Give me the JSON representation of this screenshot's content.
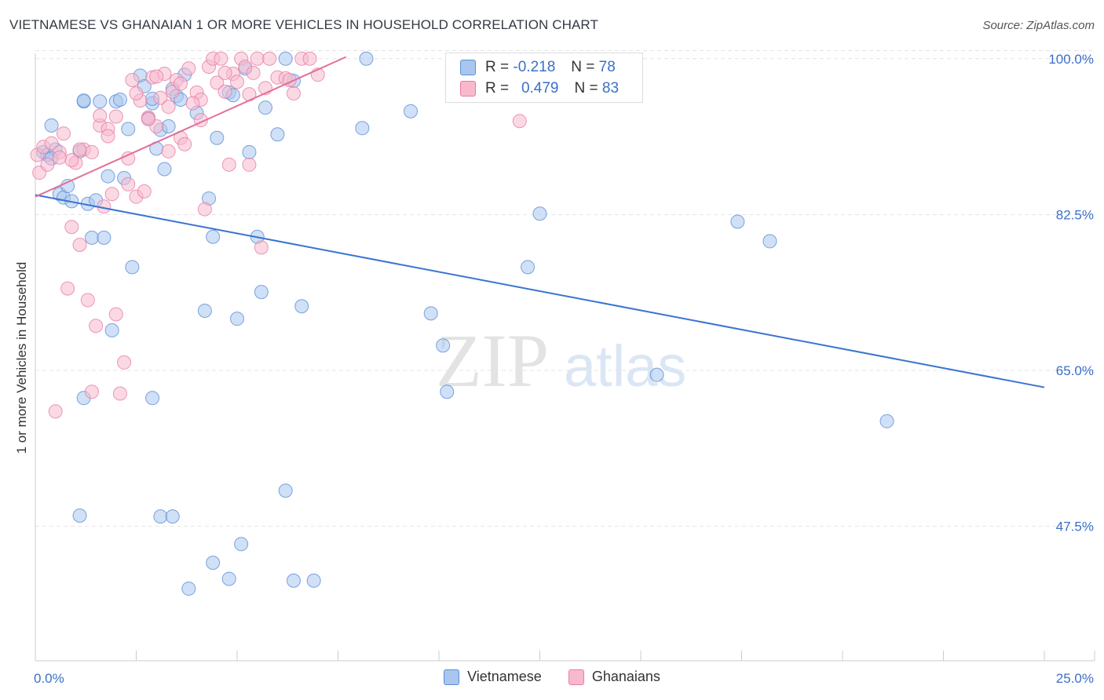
{
  "title": "VIETNAMESE VS GHANAIAN 1 OR MORE VEHICLES IN HOUSEHOLD CORRELATION CHART",
  "source": "Source: ZipAtlas.com",
  "watermark": {
    "zip": "ZIP",
    "atlas": "atlas"
  },
  "stats": [
    {
      "r_label": "R =",
      "r": "-0.218",
      "n_label": "N =",
      "n": "78",
      "color": "#a9c6ef",
      "border": "#5b8fd8"
    },
    {
      "r_label": "R =",
      "r": "0.479",
      "n_label": "N =",
      "n": "83",
      "color": "#f8b9cd",
      "border": "#e67ea3"
    }
  ],
  "legend": [
    {
      "label": "Vietnamese",
      "color": "#a9c6ef",
      "border": "#5b8fd8"
    },
    {
      "label": "Ghanaians",
      "color": "#f8b9cd",
      "border": "#e67ea3"
    }
  ],
  "chart_data": {
    "type": "scatter",
    "xlabel": "",
    "ylabel": "1 or more Vehicles in Household",
    "xlim": [
      0,
      25
    ],
    "ylim": [
      32.4,
      101.3
    ],
    "x_tick_labels": [
      {
        "v": 0,
        "label": "0.0%"
      },
      {
        "v": 25,
        "label": "25.0%"
      }
    ],
    "y_tick_labels": [
      {
        "v": 100,
        "label": "100.0%"
      },
      {
        "v": 82.5,
        "label": "82.5%"
      },
      {
        "v": 65,
        "label": "65.0%"
      },
      {
        "v": 47.5,
        "label": "47.5%"
      }
    ],
    "series": [
      {
        "name": "Vietnamese",
        "color": "#a9c6ef",
        "stroke": "#5b8fd8",
        "trend": {
          "x": [
            0,
            25
          ],
          "y": [
            84.7,
            63.1
          ],
          "color": "#3a74d0"
        },
        "points": [
          [
            0.2,
            89.5
          ],
          [
            0.3,
            89.2
          ],
          [
            0.4,
            92.5
          ],
          [
            0.5,
            89.8
          ],
          [
            0.6,
            84.8
          ],
          [
            0.7,
            84.4
          ],
          [
            0.8,
            85.7
          ],
          [
            0.9,
            84.0
          ],
          [
            1.1,
            89.6
          ],
          [
            1.2,
            95.2
          ],
          [
            1.3,
            83.7
          ],
          [
            1.4,
            79.9
          ],
          [
            1.5,
            84.1
          ],
          [
            1.6,
            95.2
          ],
          [
            1.7,
            79.9
          ],
          [
            1.8,
            86.8
          ],
          [
            1.9,
            69.5
          ],
          [
            2.0,
            95.2
          ],
          [
            2.1,
            95.4
          ],
          [
            2.2,
            86.6
          ],
          [
            2.3,
            92.1
          ],
          [
            2.4,
            76.6
          ],
          [
            2.6,
            98.1
          ],
          [
            2.7,
            96.9
          ],
          [
            2.8,
            93.3
          ],
          [
            2.9,
            95.0
          ],
          [
            3.0,
            89.9
          ],
          [
            3.1,
            92.0
          ],
          [
            3.2,
            87.6
          ],
          [
            3.3,
            92.4
          ],
          [
            3.4,
            96.6
          ],
          [
            3.5,
            95.8
          ],
          [
            3.6,
            95.4
          ],
          [
            3.7,
            98.2
          ],
          [
            4.0,
            93.9
          ],
          [
            4.2,
            71.7
          ],
          [
            4.3,
            84.3
          ],
          [
            4.4,
            80.0
          ],
          [
            4.5,
            91.1
          ],
          [
            4.8,
            96.2
          ],
          [
            4.9,
            95.9
          ],
          [
            5.0,
            70.8
          ],
          [
            5.2,
            98.9
          ],
          [
            5.3,
            89.5
          ],
          [
            5.5,
            80.0
          ],
          [
            5.6,
            73.8
          ],
          [
            5.7,
            94.5
          ],
          [
            6.0,
            91.5
          ],
          [
            6.2,
            100.0
          ],
          [
            6.4,
            97.5
          ],
          [
            6.6,
            72.2
          ],
          [
            8.1,
            92.2
          ],
          [
            8.2,
            100.0
          ],
          [
            9.3,
            94.1
          ],
          [
            9.8,
            71.4
          ],
          [
            10.1,
            67.8
          ],
          [
            10.2,
            62.6
          ],
          [
            12.2,
            76.6
          ],
          [
            12.5,
            82.6
          ],
          [
            15.4,
            64.5
          ],
          [
            17.4,
            81.7
          ],
          [
            18.2,
            79.5
          ],
          [
            21.1,
            59.3
          ],
          [
            1.2,
            61.9
          ],
          [
            2.9,
            61.9
          ],
          [
            3.1,
            48.6
          ],
          [
            3.4,
            48.6
          ],
          [
            4.4,
            43.4
          ],
          [
            4.8,
            41.6
          ],
          [
            5.1,
            45.5
          ],
          [
            6.2,
            51.5
          ],
          [
            6.4,
            41.4
          ],
          [
            6.9,
            41.4
          ],
          [
            1.1,
            48.7
          ],
          [
            3.8,
            40.5
          ],
          [
            1.2,
            95.3
          ],
          [
            0.4,
            88.8
          ],
          [
            2.9,
            95.5
          ]
        ]
      },
      {
        "name": "Ghanaians",
        "color": "#f8b9cd",
        "stroke": "#e67ea3",
        "trend": {
          "x": [
            0,
            7.7
          ],
          "y": [
            84.5,
            100.2
          ],
          "color": "#e1709a"
        },
        "points": [
          [
            0.05,
            89.2
          ],
          [
            0.1,
            87.2
          ],
          [
            0.2,
            90.1
          ],
          [
            0.3,
            88.1
          ],
          [
            0.4,
            90.5
          ],
          [
            0.5,
            60.4
          ],
          [
            0.6,
            89.5
          ],
          [
            0.7,
            91.6
          ],
          [
            0.8,
            74.2
          ],
          [
            0.9,
            81.1
          ],
          [
            1.0,
            88.3
          ],
          [
            1.1,
            79.1
          ],
          [
            1.2,
            89.8
          ],
          [
            1.3,
            72.9
          ],
          [
            1.4,
            89.5
          ],
          [
            1.5,
            70.0
          ],
          [
            1.6,
            92.5
          ],
          [
            1.7,
            83.4
          ],
          [
            1.8,
            92.1
          ],
          [
            1.9,
            84.8
          ],
          [
            2.0,
            71.3
          ],
          [
            2.1,
            62.4
          ],
          [
            2.2,
            65.9
          ],
          [
            2.3,
            88.8
          ],
          [
            2.4,
            97.6
          ],
          [
            2.5,
            84.5
          ],
          [
            2.6,
            95.3
          ],
          [
            2.7,
            85.1
          ],
          [
            2.8,
            93.4
          ],
          [
            2.9,
            97.9
          ],
          [
            3.0,
            92.4
          ],
          [
            3.1,
            95.6
          ],
          [
            3.2,
            98.3
          ],
          [
            3.3,
            94.6
          ],
          [
            3.4,
            96.3
          ],
          [
            3.5,
            97.6
          ],
          [
            3.6,
            91.1
          ],
          [
            3.7,
            90.4
          ],
          [
            3.8,
            98.9
          ],
          [
            4.0,
            96.2
          ],
          [
            4.1,
            93.1
          ],
          [
            4.2,
            83.1
          ],
          [
            4.3,
            99.1
          ],
          [
            4.4,
            100.0
          ],
          [
            4.5,
            97.3
          ],
          [
            4.6,
            100.0
          ],
          [
            4.7,
            96.3
          ],
          [
            4.8,
            88.1
          ],
          [
            4.9,
            98.3
          ],
          [
            5.0,
            97.4
          ],
          [
            5.1,
            100.0
          ],
          [
            5.2,
            99.1
          ],
          [
            5.3,
            96.0
          ],
          [
            5.4,
            98.4
          ],
          [
            5.5,
            100.0
          ],
          [
            5.6,
            78.8
          ],
          [
            5.8,
            100.0
          ],
          [
            6.0,
            97.9
          ],
          [
            6.2,
            97.8
          ],
          [
            6.4,
            96.1
          ],
          [
            6.6,
            100.0
          ],
          [
            6.8,
            100.0
          ],
          [
            7.0,
            98.2
          ],
          [
            12.0,
            93.0
          ],
          [
            1.4,
            62.6
          ],
          [
            0.9,
            88.6
          ],
          [
            1.6,
            93.6
          ],
          [
            2.8,
            93.2
          ],
          [
            3.3,
            89.6
          ],
          [
            1.8,
            91.3
          ],
          [
            2.3,
            85.9
          ],
          [
            3.6,
            97.2
          ],
          [
            4.1,
            95.4
          ],
          [
            5.3,
            88.1
          ],
          [
            0.6,
            88.9
          ],
          [
            1.1,
            89.8
          ],
          [
            2.0,
            93.5
          ],
          [
            2.5,
            96.1
          ],
          [
            3.0,
            98.0
          ],
          [
            3.9,
            95.0
          ],
          [
            4.7,
            98.4
          ],
          [
            5.7,
            96.7
          ],
          [
            6.3,
            97.6
          ]
        ]
      }
    ]
  }
}
